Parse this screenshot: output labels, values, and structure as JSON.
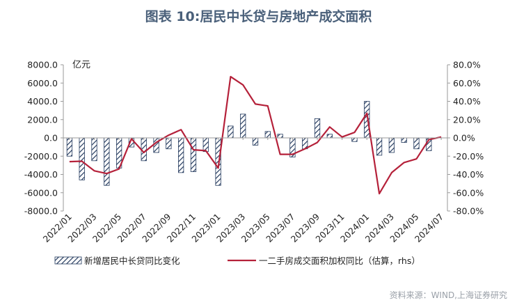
{
  "page": {
    "title": "图表 10:居民中长贷与房地产成交面积",
    "footer": "资料来源：WIND,上海证券研究"
  },
  "colors": {
    "bar_stroke": "#243a5e",
    "line": "#b5213a",
    "title": "#4a607a"
  },
  "chart_data": {
    "type": "bar+line",
    "title": "图表 10:居民中长贷与房地产成交面积",
    "unit_label": "亿元",
    "x": [
      "2022/01",
      "2022/02",
      "2022/03",
      "2022/04",
      "2022/05",
      "2022/06",
      "2022/07",
      "2022/08",
      "2022/09",
      "2022/10",
      "2022/11",
      "2022/12",
      "2023/01",
      "2023/02",
      "2023/03",
      "2023/04",
      "2023/05",
      "2023/06",
      "2023/07",
      "2023/08",
      "2023/09",
      "2023/10",
      "2023/11",
      "2023/12",
      "2024/01",
      "2024/02",
      "2024/03",
      "2024/04",
      "2024/05",
      "2024/06",
      "2024/07"
    ],
    "x_tick_labels": [
      "2022/01",
      "2022/03",
      "2022/05",
      "2022/07",
      "2022/09",
      "2022/11",
      "2023/01",
      "2023/03",
      "2023/05",
      "2023/07",
      "2023/09",
      "2023/11",
      "2024/01",
      "2024/03",
      "2024/05",
      "2024/07"
    ],
    "left_axis": {
      "ylim": [
        -8000,
        8000
      ],
      "ticks": [
        "8000.0",
        "6000.0",
        "4000.0",
        "2000.0",
        "0.0",
        "-2000.0",
        "-4000.0",
        "-6000.0",
        "-8000.0"
      ]
    },
    "right_axis": {
      "ylim": [
        -80,
        80
      ],
      "ticks": [
        "80.0%",
        "60.0%",
        "40.0%",
        "20.0%",
        "0.0%",
        "-20.0%",
        "-40.0%",
        "-60.0%",
        "-80.0%"
      ]
    },
    "series": [
      {
        "name": "新增居民中长贷同比变化",
        "kind": "bar",
        "axis": "left",
        "values": [
          -2000,
          -4600,
          -2500,
          -5200,
          -3300,
          -1000,
          -2500,
          -1600,
          -1200,
          -3800,
          -3700,
          -1500,
          -5200,
          1300,
          2600,
          -800,
          700,
          400,
          -2100,
          -1200,
          2100,
          400,
          0,
          -400,
          4000,
          -1900,
          -1600,
          -500,
          -1200,
          -1400,
          0
        ]
      },
      {
        "name": "一二手房成交面积加权同比（估算，rhs）",
        "kind": "line",
        "axis": "right",
        "values": [
          -26,
          -25.5,
          -36,
          -39,
          -34,
          -1,
          -16,
          -5,
          3,
          9,
          -13,
          -14,
          -33,
          67,
          58,
          37,
          35,
          -18,
          -18,
          -12,
          -5,
          12,
          1,
          6,
          27,
          -61,
          -38,
          -27,
          -23,
          -2,
          1
        ]
      }
    ],
    "legend_position": "bottom",
    "grid": false
  }
}
